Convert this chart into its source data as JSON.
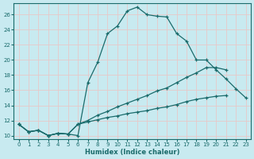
{
  "xlabel": "Humidex (Indice chaleur)",
  "xlim": [
    -0.5,
    23.5
  ],
  "ylim": [
    9.5,
    27.5
  ],
  "yticks": [
    10,
    12,
    14,
    16,
    18,
    20,
    22,
    24,
    26
  ],
  "xticks": [
    0,
    1,
    2,
    3,
    4,
    5,
    6,
    7,
    8,
    9,
    10,
    11,
    12,
    13,
    14,
    15,
    16,
    17,
    18,
    19,
    20,
    21,
    22,
    23
  ],
  "bg_color": "#c8eaf0",
  "grid_color": "#e8c8c8",
  "line_color": "#1a6b6b",
  "line1_x": [
    0,
    1,
    2,
    3,
    4,
    5,
    6,
    7,
    8,
    9,
    10,
    11,
    12,
    13,
    14,
    15,
    16,
    17,
    18,
    19,
    20,
    21,
    22,
    23
  ],
  "line1_y": [
    11.5,
    10.5,
    10.7,
    10.0,
    10.3,
    10.2,
    10.0,
    17.0,
    19.7,
    23.5,
    24.5,
    26.5,
    27.0,
    26.0,
    25.8,
    25.7,
    23.5,
    22.5,
    20.0,
    20.0,
    18.7,
    17.5,
    16.2,
    15.0
  ],
  "line2_x": [
    0,
    1,
    2,
    3,
    4,
    5,
    6,
    7,
    8,
    9,
    10,
    11,
    12,
    13,
    14,
    15,
    16,
    17,
    18,
    19,
    20,
    21,
    22,
    23
  ],
  "line2_y": [
    11.5,
    10.5,
    10.7,
    10.0,
    10.3,
    10.2,
    11.5,
    12.0,
    12.7,
    13.2,
    13.8,
    14.3,
    14.8,
    15.3,
    15.9,
    16.3,
    17.0,
    17.7,
    18.3,
    19.0,
    19.0,
    18.7,
    null,
    null
  ],
  "line3_x": [
    0,
    1,
    2,
    3,
    4,
    5,
    6,
    7,
    8,
    9,
    10,
    11,
    12,
    13,
    14,
    15,
    16,
    17,
    18,
    19,
    20,
    21,
    22,
    23
  ],
  "line3_y": [
    11.5,
    10.5,
    10.7,
    10.0,
    10.3,
    10.2,
    11.5,
    11.8,
    12.1,
    12.4,
    12.6,
    12.9,
    13.1,
    13.3,
    13.6,
    13.8,
    14.1,
    14.5,
    14.8,
    15.0,
    15.2,
    15.3,
    null,
    null
  ]
}
